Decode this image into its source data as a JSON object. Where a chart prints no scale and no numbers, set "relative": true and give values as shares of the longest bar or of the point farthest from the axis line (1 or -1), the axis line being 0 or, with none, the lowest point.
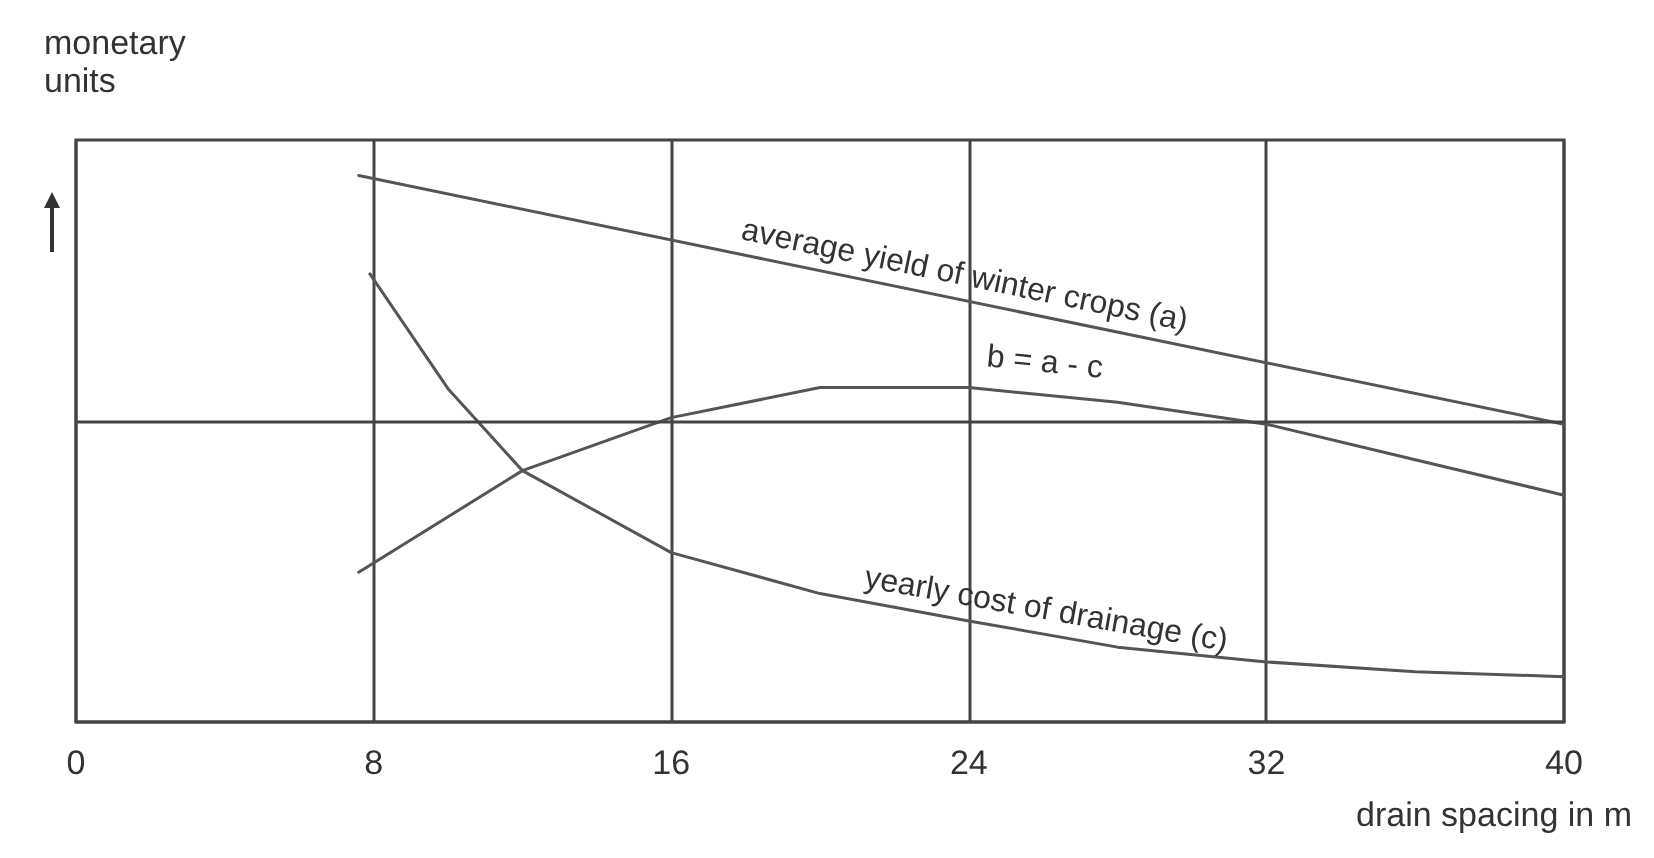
{
  "chart_data": {
    "type": "line",
    "relative": true,
    "xlabel": "drain spacing in m",
    "ylabel": "monetary units",
    "xlim": [
      0,
      40
    ],
    "xticks": [
      0,
      8,
      16,
      24,
      32,
      40
    ],
    "grid": "x",
    "legend": false,
    "marker": "none",
    "line_style": "solid",
    "ref_lines": [
      {
        "axis": "y",
        "value": 0.545,
        "color": "#444444"
      }
    ],
    "series": [
      {
        "name": "average yield of winter crops (a)",
        "color": "#555555",
        "x": [
          7.6,
          40
        ],
        "values": [
          1,
          0.545
        ]
      },
      {
        "name": "b = a - c",
        "color": "#555555",
        "x": [
          7.6,
          12,
          16,
          20,
          24,
          28,
          32,
          36,
          40
        ],
        "values": [
          0.274,
          0.46,
          0.557,
          0.612,
          0.612,
          0.585,
          0.545,
          0.48,
          0.415
        ]
      },
      {
        "name": "yearly cost of drainage (c)",
        "color": "#555555",
        "x": [
          7.9,
          10,
          12,
          16,
          20,
          24,
          28,
          32,
          36,
          40
        ],
        "values": [
          0.82,
          0.61,
          0.46,
          0.31,
          0.235,
          0.185,
          0.137,
          0.11,
          0.092,
          0.083
        ]
      }
    ]
  }
}
